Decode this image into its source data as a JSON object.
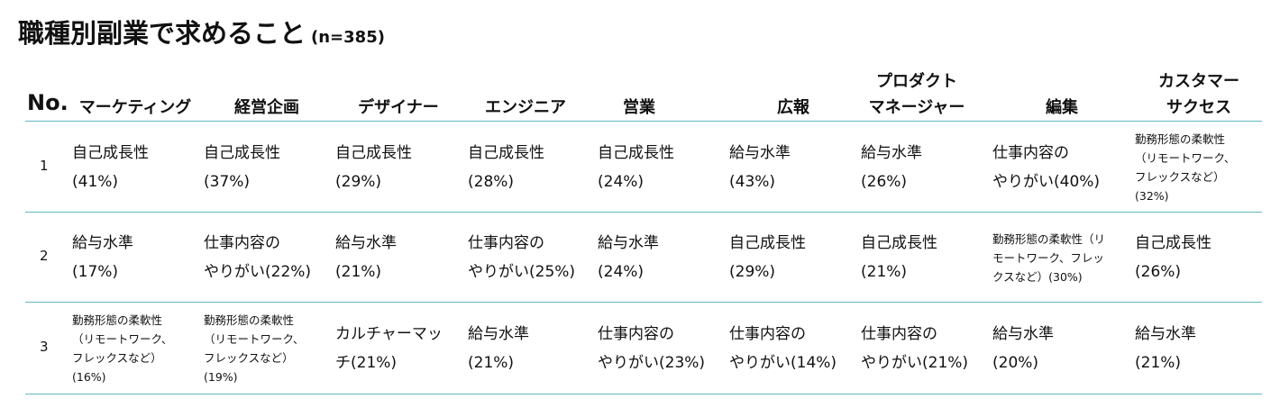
{
  "title": "職種別副業で求めること",
  "subtitle": "(n=385)",
  "header": {
    "no": "No.",
    "columns": [
      {
        "l1": "",
        "l2": "マーケティング"
      },
      {
        "l1": "",
        "l2": "経営企画"
      },
      {
        "l1": "",
        "l2": "デザイナー"
      },
      {
        "l1": "",
        "l2": "エンジニア"
      },
      {
        "l1": "",
        "l2": "営業"
      },
      {
        "l1": "",
        "l2": "広報"
      },
      {
        "l1": "プロダクト",
        "l2": "マネージャー"
      },
      {
        "l1": "",
        "l2": "編集"
      },
      {
        "l1": "カスタマー",
        "l2": "サクセス"
      }
    ]
  },
  "rows": [
    {
      "no": "1",
      "cells": [
        [
          "自己成長性",
          "(41%)"
        ],
        [
          "自己成長性",
          "(37%)"
        ],
        [
          "自己成長性",
          "(29%)"
        ],
        [
          "自己成長性",
          "(28%)"
        ],
        [
          "自己成長性",
          "(24%)"
        ],
        [
          "給与水準",
          "(43%)"
        ],
        [
          "給与水準",
          "(26%)"
        ],
        [
          "仕事内容の",
          "やりがい(40%)"
        ],
        [
          "勤務形態の柔軟性",
          "（リモートワーク、",
          "フレックスなど）",
          "(32%)"
        ]
      ]
    },
    {
      "no": "2",
      "cells": [
        [
          "給与水準",
          "(17%)"
        ],
        [
          "仕事内容の",
          "やりがい(22%)"
        ],
        [
          "給与水準",
          "(21%)"
        ],
        [
          "仕事内容の",
          "やりがい(25%)"
        ],
        [
          "給与水準",
          "(24%)"
        ],
        [
          "自己成長性",
          "(29%)"
        ],
        [
          "自己成長性",
          "(21%)"
        ],
        [
          "勤務形態の柔軟性（リ",
          "モートワーク、フレッ",
          "クスなど）(30%)"
        ],
        [
          "自己成長性",
          "(26%)"
        ]
      ]
    },
    {
      "no": "3",
      "cells": [
        [
          "勤務形態の柔軟性",
          "（リモートワーク、",
          "フレックスなど）",
          "(16%)"
        ],
        [
          "勤務形態の柔軟性",
          "（リモートワーク、",
          "フレックスなど）",
          "(19%)"
        ],
        [
          "カルチャーマッ",
          "チ(21%)"
        ],
        [
          "給与水準",
          "(21%)"
        ],
        [
          "仕事内容の",
          "やりがい(23%)"
        ],
        [
          "仕事内容の",
          "やりがい(14%)"
        ],
        [
          "仕事内容の",
          "やりがい(21%)"
        ],
        [
          "給与水準",
          "(20%)"
        ],
        [
          "給与水準",
          "(21%)"
        ]
      ]
    }
  ]
}
